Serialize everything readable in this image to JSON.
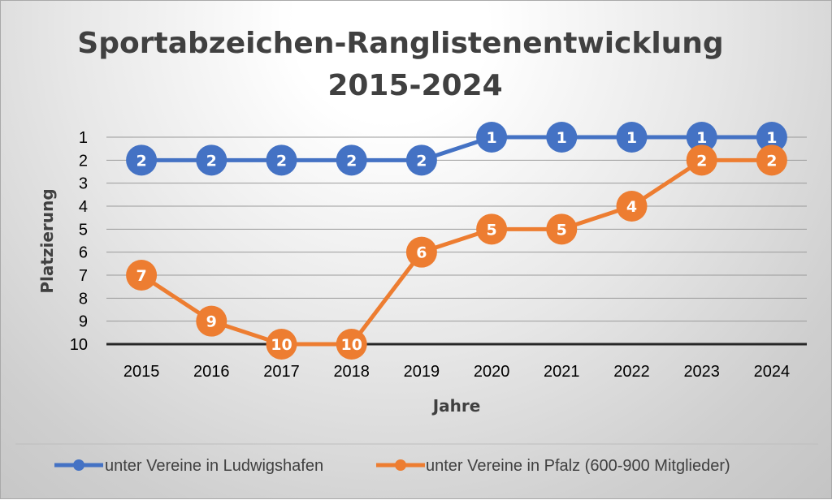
{
  "chart_data": {
    "type": "line",
    "title": [
      "Sportabzeichen-Ranglistenentwicklung",
      "2015-2024"
    ],
    "xlabel": "Jahre",
    "ylabel": "Platzierung",
    "categories": [
      "2015",
      "2016",
      "2017",
      "2018",
      "2019",
      "2020",
      "2021",
      "2022",
      "2023",
      "2024"
    ],
    "yticks": [
      "1",
      "2",
      "3",
      "4",
      "5",
      "6",
      "7",
      "8",
      "9",
      "10"
    ],
    "ylim": [
      1,
      10
    ],
    "y_inverted": true,
    "grid": true,
    "legend_position": "bottom",
    "series": [
      {
        "name": "unter Vereine in Ludwigshafen",
        "color": "#4472C4",
        "values": [
          2,
          2,
          2,
          2,
          2,
          1,
          1,
          1,
          1,
          1
        ]
      },
      {
        "name": "unter Vereine in Pfalz (600-900 Mitglieder)",
        "color": "#ED7D31",
        "values": [
          7,
          9,
          10,
          10,
          6,
          5,
          5,
          4,
          2,
          2
        ]
      }
    ]
  }
}
